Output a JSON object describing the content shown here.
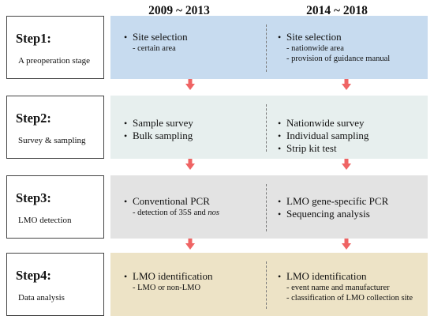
{
  "headers": {
    "left": "2009 ~ 2013",
    "right": "2014 ~ 2018"
  },
  "colors": {
    "step1_bg": "#c7dbef",
    "step2_bg": "#e7efee",
    "step3_bg": "#e3e3e3",
    "step4_bg": "#ede3c6",
    "arrow": "#ef6464",
    "divider": "#7a7a7a"
  },
  "steps": [
    {
      "label": "Step1:",
      "description": "A preoperation stage",
      "left": {
        "bullets": [
          {
            "text": "Site selection",
            "subs": [
              "- certain area"
            ]
          }
        ]
      },
      "right": {
        "bullets": [
          {
            "text": "Site selection",
            "subs": [
              "- nationwide area",
              "- provision of guidance manual"
            ]
          }
        ]
      }
    },
    {
      "label": "Step2:",
      "description": "Survey & sampling",
      "left": {
        "bullets": [
          {
            "text": "Sample survey",
            "subs": []
          },
          {
            "text": "Bulk sampling",
            "subs": []
          }
        ]
      },
      "right": {
        "bullets": [
          {
            "text": "Nationwide survey",
            "subs": []
          },
          {
            "text": "Individual sampling",
            "subs": []
          },
          {
            "text": "Strip kit test",
            "subs": []
          }
        ]
      }
    },
    {
      "label": "Step3:",
      "description": "LMO detection",
      "left": {
        "bullets": [
          {
            "text": "Conventional PCR",
            "subs": [
              "- detection of 35S and nos"
            ]
          }
        ]
      },
      "right": {
        "bullets": [
          {
            "text": "LMO gene-specific PCR",
            "subs": []
          },
          {
            "text": "Sequencing analysis",
            "subs": []
          }
        ]
      }
    },
    {
      "label": "Step4:",
      "description": "Data analysis",
      "left": {
        "bullets": [
          {
            "text": "LMO identification",
            "subs": [
              "- LMO or non-LMO"
            ]
          }
        ]
      },
      "right": {
        "bullets": [
          {
            "text": "LMO identification",
            "subs": [
              "- event name and manufacturer",
              "- classification of LMO collection site"
            ]
          }
        ]
      }
    }
  ]
}
